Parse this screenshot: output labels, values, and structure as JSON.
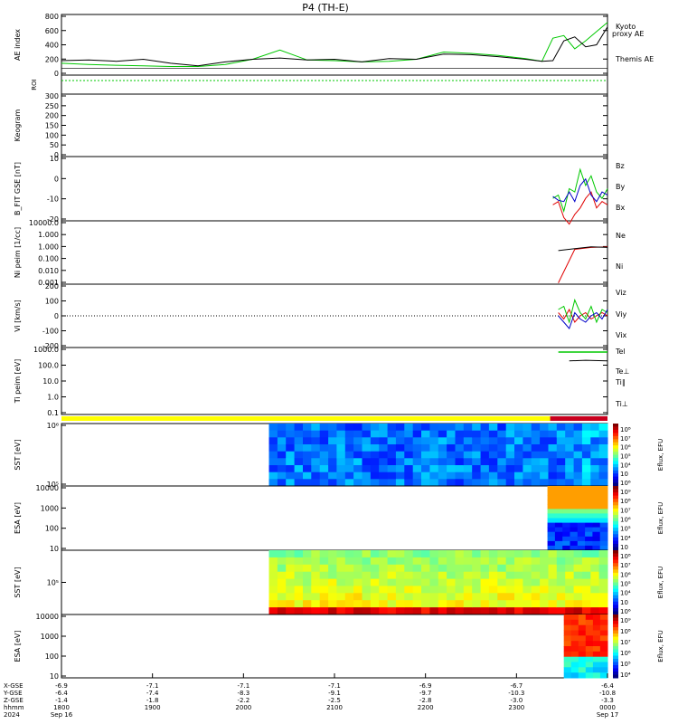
{
  "title": "P4 (TH-E)",
  "colors": {
    "kyoto": "#00c800",
    "themis": "#000000",
    "red": "#e00000",
    "green": "#00c800",
    "blue": "#0000c8",
    "bar_yellow": "#ffff00",
    "bar_red": "#c8001e"
  },
  "chart_data": [
    {
      "type": "line",
      "name": "ae",
      "ylabel": "AE index",
      "yticks": [
        "800",
        "600",
        "400",
        "200",
        "0"
      ],
      "ylim": [
        -100,
        820
      ],
      "legend": [
        "Kyoto",
        "proxy AE",
        "Themis AE"
      ],
      "x": [
        0,
        0.05,
        0.1,
        0.15,
        0.2,
        0.25,
        0.3,
        0.35,
        0.4,
        0.45,
        0.5,
        0.55,
        0.6,
        0.65,
        0.7,
        0.75,
        0.8,
        0.85,
        0.88,
        0.9,
        0.92,
        0.94,
        0.96,
        0.98,
        1.0
      ],
      "series": [
        {
          "name": "Kyoto proxy AE",
          "values": [
            80,
            60,
            50,
            40,
            30,
            30,
            60,
            140,
            280,
            130,
            120,
            100,
            110,
            140,
            250,
            230,
            200,
            150,
            110,
            460,
            500,
            300,
            420,
            560,
            700
          ]
        },
        {
          "name": "Themis AE",
          "values": [
            120,
            130,
            110,
            140,
            80,
            40,
            100,
            140,
            160,
            130,
            140,
            100,
            150,
            140,
            220,
            210,
            180,
            140,
            110,
            120,
            420,
            480,
            330,
            360,
            630
          ]
        }
      ]
    },
    {
      "type": "line",
      "name": "roi",
      "ylabel": "ROI"
    },
    {
      "type": "line",
      "name": "keogram",
      "ylabel": "Keogram",
      "yticks": [
        "300",
        "250",
        "200",
        "150",
        "100",
        "50",
        "0"
      ],
      "ylim": [
        0,
        300
      ]
    },
    {
      "type": "line",
      "name": "b",
      "ylabel": "B_FIT GSE [nT]",
      "yticks": [
        "10",
        "0",
        "-10",
        "-20"
      ],
      "ylim": [
        -20,
        20
      ],
      "legend": [
        "Bz",
        "By",
        "Bx"
      ]
    },
    {
      "type": "line",
      "name": "n",
      "ylabel": "Ni peim [1/cc]",
      "yticks": [
        "10000.0",
        "1.000",
        "1.000",
        "0.100",
        "0.010",
        "0.001"
      ],
      "legend": [
        "Ne",
        "Ni"
      ]
    },
    {
      "type": "line",
      "name": "v",
      "ylabel": "Vi [km/s]",
      "yticks": [
        "200",
        "100",
        "0",
        "-100",
        "-200"
      ],
      "ylim": [
        -250,
        250
      ],
      "legend": [
        "Viz",
        "Viy",
        "Vix"
      ]
    },
    {
      "type": "line",
      "name": "ti",
      "ylabel": "Ti peim [eV]",
      "yticks": [
        "1000.0",
        "100.0",
        "10.0",
        "1.0",
        "0.1"
      ],
      "legend": [
        "Tel",
        "Te⊥",
        "Ti∥",
        "Ti⊥"
      ]
    },
    {
      "type": "heatmap",
      "name": "sst_e",
      "ylabel": "SST [eV]",
      "yticks": [
        "10⁶",
        "10⁵"
      ],
      "colorbar_label": "Eflux, EFU",
      "colorbar_ticks": [
        "10⁸",
        "10⁷",
        "10⁶",
        "10⁵",
        "10⁴",
        "10⁳",
        "10⁶"
      ]
    },
    {
      "type": "heatmap",
      "name": "esa_e",
      "ylabel": "ESA [eV]",
      "yticks": [
        "10000",
        "1000",
        "100",
        "10"
      ],
      "colorbar_label": "Eflux, EFU",
      "colorbar_ticks": [
        "10⁹",
        "10⁸",
        "10⁷",
        "10⁶",
        "10⁵",
        "10⁴",
        "10⁳"
      ]
    },
    {
      "type": "heatmap",
      "name": "sst_i",
      "ylabel": "SST [eV]",
      "yticks": [
        "10⁵"
      ],
      "colorbar_label": "Eflux, EFU",
      "colorbar_ticks": [
        "10⁸",
        "10⁷",
        "10⁶",
        "10⁵",
        "10⁴",
        "10⁳",
        "10⁶"
      ]
    },
    {
      "type": "heatmap",
      "name": "esa_i",
      "ylabel": "ESA [eV]",
      "yticks": [
        "10000",
        "1000",
        "100",
        "10"
      ],
      "colorbar_label": "Eflux, EFU",
      "colorbar_ticks": [
        "10⁹",
        "10⁸",
        "10⁷",
        "10⁶",
        "10⁵",
        "10⁴"
      ]
    }
  ],
  "xaxis": {
    "row_labels": [
      "X-GSE",
      "Y-GSE",
      "Z-GSE",
      "hhmm",
      "2024"
    ],
    "columns": [
      [
        "-6.9",
        "-6.4",
        "-1.4",
        "1800",
        "Sep 16"
      ],
      [
        "-7.1",
        "-7.4",
        "-1.8",
        "1900",
        ""
      ],
      [
        "-7.1",
        "-8.3",
        "-2.2",
        "2000",
        ""
      ],
      [
        "-7.1",
        "-9.1",
        "-2.5",
        "2100",
        ""
      ],
      [
        "-6.9",
        "-9.7",
        "-2.8",
        "2200",
        ""
      ],
      [
        "-6.7",
        "-10.3",
        "-3.0",
        "2300",
        ""
      ],
      [
        "-6.4",
        "-10.8",
        "-3.3",
        "0000",
        "Sep 17"
      ]
    ]
  }
}
